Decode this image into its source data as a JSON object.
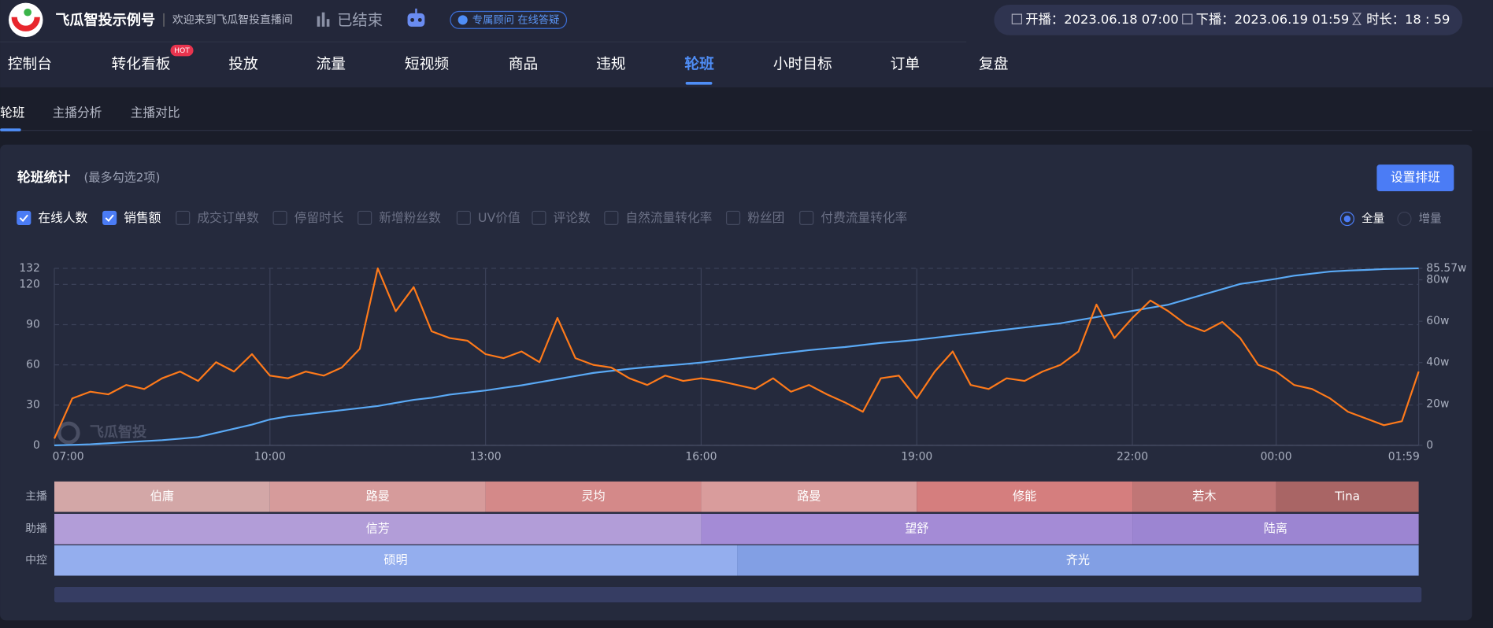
{
  "header": {
    "account": "飞瓜智投示例号",
    "welcome": "欢迎来到飞瓜智投直播间",
    "status": "已结束",
    "advisor": "专属顾问 在线答疑",
    "start": "开播：2023.06.18 07:00",
    "end": "下播：2023.06.19 01:59",
    "duration": "时长：18 : 59"
  },
  "nav": {
    "items": [
      "控制台",
      "转化看板",
      "投放",
      "流量",
      "短视频",
      "商品",
      "违规",
      "轮班",
      "小时目标",
      "订单",
      "复盘"
    ],
    "active": 7,
    "badge": "HOT"
  },
  "tabs": {
    "items": [
      "轮班",
      "主播分析",
      "主播对比"
    ],
    "active": 0
  },
  "panel": {
    "title": "轮班统计",
    "hint": "(最多勾选2项)",
    "button": "设置排班",
    "options": [
      "成交订单数",
      "停留时长",
      "新增粉丝数",
      "UV价值",
      "评论数",
      "自然流量转化率",
      "粉丝团",
      "付费流量转化率"
    ],
    "modes": [
      "全量",
      "增量"
    ],
    "mode": 0,
    "watermark": "飞瓜智投"
  },
  "chart_data": {
    "type": "line",
    "x": [
      0,
      15,
      30,
      45,
      60,
      75,
      90,
      105,
      120,
      135,
      150,
      165,
      180,
      195,
      210,
      225,
      240,
      255,
      270,
      285,
      300,
      315,
      330,
      345,
      360,
      375,
      390,
      405,
      420,
      435,
      450,
      465,
      480,
      495,
      510,
      525,
      540,
      555,
      570,
      585,
      600,
      615,
      630,
      645,
      660,
      675,
      690,
      705,
      720,
      735,
      750,
      765,
      780,
      795,
      810,
      825,
      840,
      855,
      870,
      885,
      900,
      915,
      930,
      945,
      960,
      975,
      990,
      1005,
      1020,
      1035,
      1050,
      1065,
      1080,
      1095,
      1110,
      1125,
      1139
    ],
    "xlim": [
      0,
      1139
    ],
    "xticks": [
      {
        "value": 0,
        "label": "07:00"
      },
      {
        "value": 180,
        "label": "10:00"
      },
      {
        "value": 360,
        "label": "13:00"
      },
      {
        "value": 540,
        "label": "16:00"
      },
      {
        "value": 720,
        "label": "19:00"
      },
      {
        "value": 900,
        "label": "22:00"
      },
      {
        "value": 1020,
        "label": "00:00"
      },
      {
        "value": 1139,
        "label": "01:59"
      }
    ],
    "ylim": [
      0,
      132
    ],
    "yticks": [
      0,
      30,
      60,
      90,
      120,
      132
    ],
    "y2lim": [
      0,
      85.57
    ],
    "y2ticks": [
      0,
      {
        "value": 20,
        "label": "20w"
      },
      {
        "value": 40,
        "label": "40w"
      },
      {
        "value": 60,
        "label": "60w"
      },
      {
        "value": 80,
        "label": "80w"
      },
      {
        "value": 85.57,
        "label": "85.57w"
      }
    ],
    "grid": true,
    "series": [
      {
        "name": "在线人数",
        "color": "#ff7a1a",
        "values": [
          5,
          35,
          40,
          38,
          45,
          42,
          50,
          55,
          48,
          62,
          55,
          68,
          52,
          50,
          55,
          52,
          58,
          72,
          132,
          100,
          118,
          85,
          80,
          78,
          68,
          65,
          70,
          62,
          95,
          65,
          60,
          58,
          50,
          45,
          52,
          48,
          50,
          48,
          45,
          42,
          50,
          40,
          45,
          38,
          32,
          25,
          50,
          52,
          35,
          55,
          70,
          45,
          42,
          50,
          48,
          55,
          60,
          70,
          105,
          80,
          95,
          108,
          100,
          90,
          85,
          92,
          80,
          60,
          55,
          45,
          42,
          35,
          25,
          20,
          15,
          18,
          55
        ]
      },
      {
        "name": "销售额",
        "color": "#5aa9f5",
        "axis": "y2",
        "values": [
          0,
          0.2,
          0.5,
          1,
          1.5,
          2,
          2.5,
          3.2,
          4,
          6,
          8,
          10,
          12.5,
          14,
          15,
          16,
          17,
          18,
          19,
          20.5,
          22,
          23,
          24.5,
          25.5,
          26.5,
          27.8,
          29,
          30.5,
          32,
          33.5,
          35,
          36,
          37,
          37.8,
          38.5,
          39.2,
          40,
          41,
          42,
          43,
          44,
          45,
          46,
          46.8,
          47.5,
          48.5,
          49.5,
          50.2,
          51,
          52,
          53,
          54,
          55,
          56,
          57,
          58,
          59,
          60.5,
          62,
          63.5,
          65,
          66.5,
          68,
          70.5,
          73,
          75.5,
          78,
          79.2,
          80.5,
          82,
          83,
          84,
          84.5,
          84.8,
          85.2,
          85.4,
          85.57
        ]
      }
    ]
  },
  "schedule": {
    "rows": [
      {
        "label": "主播",
        "shifts": [
          {
            "name": "伯庸",
            "start": 0,
            "end": 180,
            "color": "#d3a7a7"
          },
          {
            "name": "路曼",
            "start": 180,
            "end": 360,
            "color": "#d69b9b"
          },
          {
            "name": "灵均",
            "start": 360,
            "end": 540,
            "color": "#d48989"
          },
          {
            "name": "路曼",
            "start": 540,
            "end": 720,
            "color": "#d99c9c"
          },
          {
            "name": "修能",
            "start": 720,
            "end": 900,
            "color": "#d57e7e"
          },
          {
            "name": "若木",
            "start": 900,
            "end": 1020,
            "color": "#c07676"
          },
          {
            "name": "Tina",
            "start": 1020,
            "end": 1139,
            "color": "#a96565"
          }
        ]
      },
      {
        "label": "助播",
        "shifts": [
          {
            "name": "信芳",
            "start": 0,
            "end": 540,
            "color": "#b29dd8"
          },
          {
            "name": "望舒",
            "start": 540,
            "end": 900,
            "color": "#a48bd6"
          },
          {
            "name": "陆离",
            "start": 900,
            "end": 1139,
            "color": "#9c85d2"
          }
        ]
      },
      {
        "label": "中控",
        "shifts": [
          {
            "name": "硕明",
            "start": 0,
            "end": 570,
            "color": "#94aeee"
          },
          {
            "name": "齐光",
            "start": 570,
            "end": 1139,
            "color": "#829fe4"
          }
        ]
      }
    ]
  }
}
